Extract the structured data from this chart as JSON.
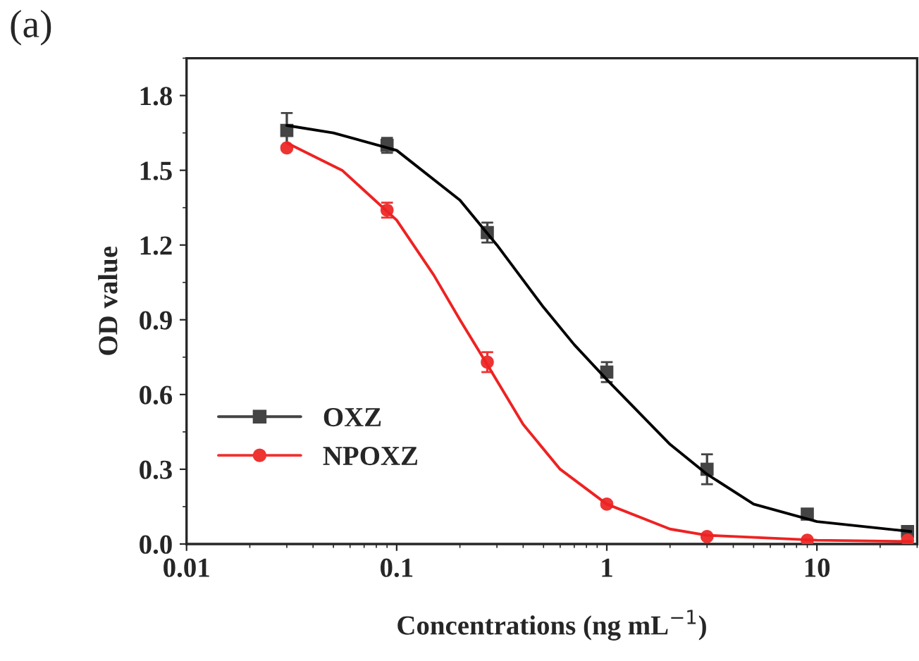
{
  "chart_data": {
    "type": "scatter",
    "title": "(a)",
    "xlabel": "Concentrations (ng mL$^{−1}$)",
    "ylabel": "OD value",
    "log": "x",
    "xlim": [
      0.01,
      30
    ],
    "xticks": [
      0.01,
      0.1,
      1,
      10
    ],
    "ylim": [
      0,
      1.95
    ],
    "yticks": [
      {
        "value": 0,
        "label": "0.0"
      },
      0.3,
      0.6,
      0.9,
      1.2,
      1.5,
      1.8
    ],
    "grid": false,
    "legend": "bottom left",
    "x": [
      0.03,
      0.09,
      0.27,
      1,
      3,
      9,
      27
    ],
    "series": [
      {
        "name": "OXZ",
        "color": "#444444",
        "marker": "square",
        "values": [
          1.66,
          1.6,
          1.25,
          0.69,
          0.3,
          0.12,
          0.05
        ],
        "errors": [
          0.07,
          0.03,
          0.04,
          0.04,
          0.06,
          0.01,
          0.01
        ]
      },
      {
        "name": "NPOXZ",
        "color": "#ee3333",
        "marker": "circle",
        "values": [
          1.59,
          1.34,
          0.73,
          0.16,
          0.03,
          0.015,
          0.015
        ],
        "errors": [
          0.01,
          0.03,
          0.04,
          0.01,
          0.005,
          0.005,
          0.005
        ]
      },
      {
        "type": "line",
        "color": "#000000",
        "x": [
          0.03,
          0.05,
          0.1,
          0.2,
          0.3,
          0.5,
          0.7,
          1,
          2,
          3,
          5,
          10,
          28
        ],
        "values": [
          1.68,
          1.65,
          1.58,
          1.38,
          1.2,
          0.95,
          0.8,
          0.66,
          0.4,
          0.28,
          0.16,
          0.09,
          0.05
        ]
      },
      {
        "type": "line",
        "color": "#ee2222",
        "x": [
          0.03,
          0.055,
          0.1,
          0.15,
          0.2,
          0.27,
          0.4,
          0.6,
          1,
          2,
          3,
          10,
          28
        ],
        "values": [
          1.61,
          1.5,
          1.3,
          1.08,
          0.9,
          0.72,
          0.48,
          0.3,
          0.16,
          0.06,
          0.035,
          0.015,
          0.01
        ]
      }
    ]
  }
}
